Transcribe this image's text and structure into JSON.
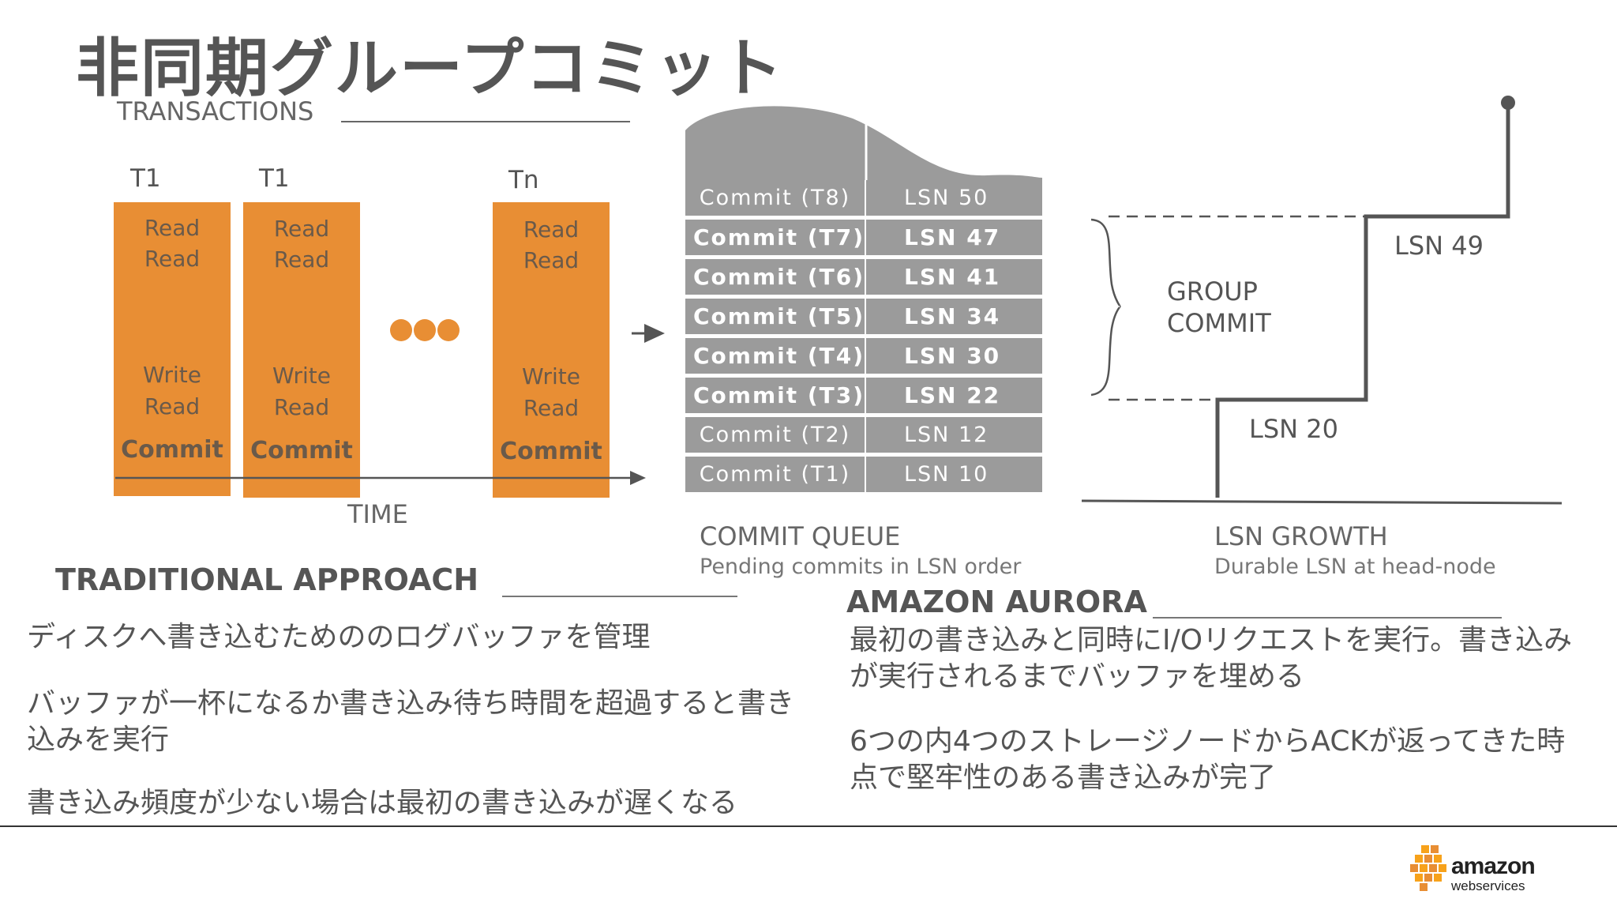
{
  "title": "非同期グループコミット",
  "transactions_label": "TRANSACTIONS",
  "time_label": "TIME",
  "transactions": [
    {
      "id": "T1",
      "ops_top": [
        "Read",
        "Read"
      ],
      "ops_bottom": [
        "Write",
        "Read"
      ],
      "commit": "Commit"
    },
    {
      "id": "T1",
      "ops_top": [
        "Read",
        "Read"
      ],
      "ops_bottom": [
        "Write",
        "Read"
      ],
      "commit": "Commit"
    },
    {
      "id": "Tn",
      "ops_top": [
        "Read",
        "Read"
      ],
      "ops_bottom": [
        "Write",
        "Read"
      ],
      "commit": "Commit"
    }
  ],
  "commit_queue": {
    "rows": [
      {
        "commit": "Commit (T8)",
        "lsn": "LSN 50",
        "bold": false
      },
      {
        "commit": "Commit (T7)",
        "lsn": "LSN 47",
        "bold": true
      },
      {
        "commit": "Commit (T6)",
        "lsn": "LSN 41",
        "bold": true
      },
      {
        "commit": "Commit (T5)",
        "lsn": "LSN 34",
        "bold": true
      },
      {
        "commit": "Commit (T4)",
        "lsn": "LSN 30",
        "bold": true
      },
      {
        "commit": "Commit (T3)",
        "lsn": "LSN 22",
        "bold": true
      },
      {
        "commit": "Commit (T2)",
        "lsn": "LSN 12",
        "bold": false
      },
      {
        "commit": "Commit (T1)",
        "lsn": "LSN 10",
        "bold": false
      }
    ],
    "caption": "COMMIT QUEUE",
    "subcaption": "Pending commits in LSN order"
  },
  "group_commit": {
    "line1": "GROUP",
    "line2": "COMMIT"
  },
  "lsn_growth": {
    "high_label": "LSN 49",
    "low_label": "LSN 20",
    "caption": "LSN GROWTH",
    "subcaption": "Durable LSN at head-node"
  },
  "traditional": {
    "heading": "TRADITIONAL APPROACH",
    "bullets": [
      "ディスクへ書き込むためののログバッファを管理",
      "バッファが一杯になるか書き込み待ち時間を超過すると書き込みを実行",
      "書き込み頻度が少ない場合は最初の書き込みが遅くなる"
    ]
  },
  "aurora": {
    "heading": "AMAZON AURORA",
    "bullets": [
      "最初の書き込みと同時にI/Oリクエストを実行。書き込みが実行されるまでバッファを埋める",
      "6つの内4つのストレージノードからACKが返ってきた時点で堅牢性のある書き込みが完了"
    ]
  },
  "logo": {
    "line1": "amazon",
    "line2": "webservices"
  },
  "colors": {
    "orange": "#E88E34",
    "queue_gray": "#9b9b9b",
    "text_gray": "#555555"
  }
}
